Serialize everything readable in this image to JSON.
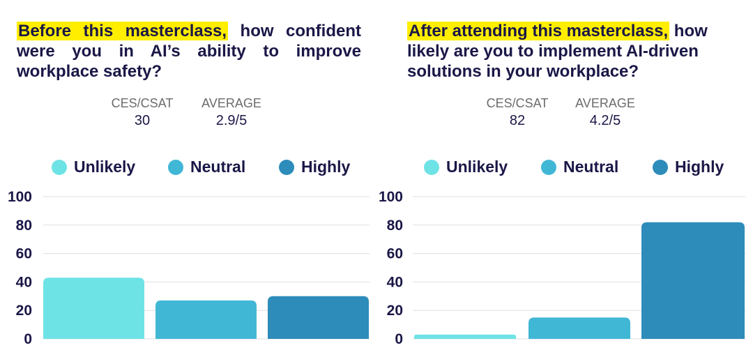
{
  "colors": {
    "unlikely": "#6ee3e6",
    "neutral": "#41b7d6",
    "highly": "#2d8cba",
    "highlight": "#ffee00",
    "text": "#1a1747"
  },
  "panels": [
    {
      "question_highlight": "Before this masterclass,",
      "question_rest": " how confident were you in AI’s ability to improve workplace safety?",
      "stats": [
        {
          "label": "CES/CSAT",
          "value": "30"
        },
        {
          "label": "AVERAGE",
          "value": "2.9/5"
        }
      ],
      "legend": [
        "Unlikely",
        "Neutral",
        "Highly"
      ]
    },
    {
      "question_highlight": "After attending this masterclass,",
      "question_rest": " how likely are you to implement AI-driven solutions in your workplace?",
      "stats": [
        {
          "label": "CES/CSAT",
          "value": "82"
        },
        {
          "label": "AVERAGE",
          "value": "4.2/5"
        }
      ],
      "legend": [
        "Unlikely",
        "Neutral",
        "Highly"
      ]
    }
  ],
  "chart_data": [
    {
      "type": "bar",
      "categories": [
        "Unlikely",
        "Neutral",
        "Highly"
      ],
      "values": [
        43,
        27,
        30
      ],
      "ylim": [
        0,
        100
      ],
      "yticks": [
        "0",
        "20",
        "40",
        "60",
        "80",
        "100"
      ],
      "grid": true,
      "legend_position": "top"
    },
    {
      "type": "bar",
      "categories": [
        "Unlikely",
        "Neutral",
        "Highly"
      ],
      "values": [
        3,
        15,
        82
      ],
      "ylim": [
        0,
        100
      ],
      "yticks": [
        "0",
        "20",
        "40",
        "60",
        "80",
        "100"
      ],
      "grid": true,
      "legend_position": "top"
    }
  ]
}
